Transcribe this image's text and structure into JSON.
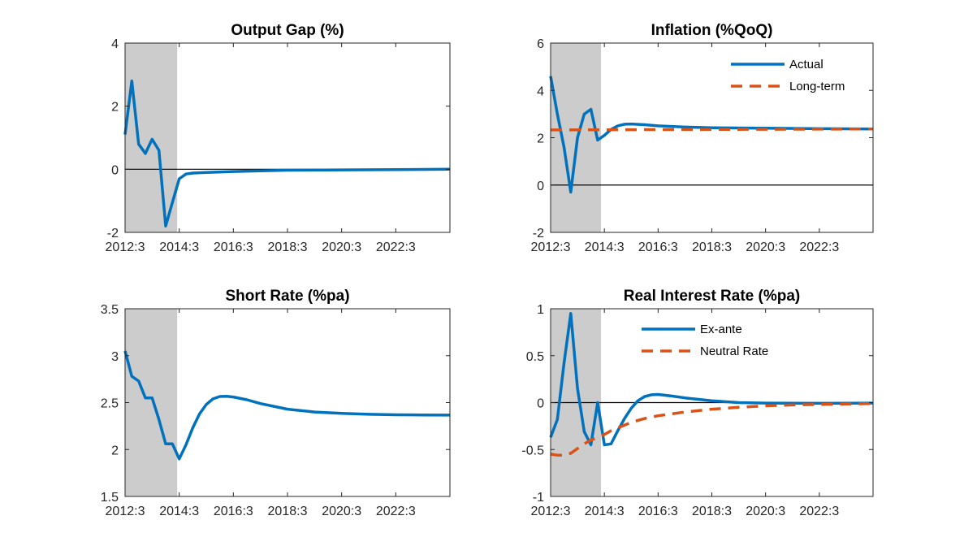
{
  "colors": {
    "actual": "#0072BD",
    "reference": "#D95319",
    "shade": "#CCCCCC",
    "axis": "#262626"
  },
  "chart_data": [
    {
      "type": "line",
      "title": "Output Gap (%)",
      "xlim": [
        0,
        48
      ],
      "ylim": [
        -2,
        4
      ],
      "yticks": [
        -2,
        0,
        2,
        4
      ],
      "ytick_labels": [
        "-2",
        "0",
        "2",
        "4"
      ],
      "xticks": [
        0,
        8,
        16,
        24,
        32,
        40
      ],
      "xtick_labels": [
        "2012:3",
        "2014:3",
        "2016:3",
        "2018:3",
        "2020:3",
        "2022:3"
      ],
      "shade_x": [
        0,
        7.7
      ],
      "zero_line": true,
      "legend": null,
      "series": [
        {
          "style": "solid",
          "x": [
            0,
            1,
            2,
            3,
            4,
            5,
            6,
            7,
            8,
            9,
            10,
            12,
            16,
            20,
            24,
            32,
            40,
            48
          ],
          "y": [
            1.1,
            2.8,
            0.8,
            0.5,
            0.95,
            0.6,
            -1.8,
            -1.05,
            -0.3,
            -0.15,
            -0.12,
            -0.1,
            -0.07,
            -0.05,
            -0.03,
            -0.02,
            -0.01,
            0
          ]
        }
      ]
    },
    {
      "type": "line",
      "title": "Inflation (%QoQ)",
      "xlim": [
        0,
        48
      ],
      "ylim": [
        -2,
        6
      ],
      "yticks": [
        -2,
        0,
        2,
        4,
        6
      ],
      "ytick_labels": [
        "-2",
        "0",
        "2",
        "4",
        "6"
      ],
      "xticks": [
        0,
        8,
        16,
        24,
        32,
        40
      ],
      "xtick_labels": [
        "2012:3",
        "2014:3",
        "2016:3",
        "2018:3",
        "2020:3",
        "2022:3"
      ],
      "shade_x": [
        0,
        7.5
      ],
      "zero_line": true,
      "legend": {
        "position": "top-right",
        "entries": [
          "Actual",
          "Long-term"
        ]
      },
      "series": [
        {
          "name": "Actual",
          "style": "solid",
          "x": [
            0,
            1,
            2,
            3,
            4,
            5,
            6,
            7,
            8,
            9,
            10,
            11,
            12,
            14,
            16,
            20,
            24,
            32,
            40,
            48
          ],
          "y": [
            4.6,
            3.0,
            1.6,
            -0.3,
            2.0,
            3.0,
            3.2,
            1.9,
            2.1,
            2.35,
            2.5,
            2.57,
            2.58,
            2.55,
            2.5,
            2.45,
            2.42,
            2.4,
            2.38,
            2.37
          ]
        },
        {
          "name": "Long-term",
          "style": "dashed",
          "x": [
            0,
            48
          ],
          "y": [
            2.33,
            2.37
          ]
        }
      ]
    },
    {
      "type": "line",
      "title": "Short Rate (%pa)",
      "xlim": [
        0,
        48
      ],
      "ylim": [
        1.5,
        3.5
      ],
      "yticks": [
        1.5,
        2,
        2.5,
        3,
        3.5
      ],
      "ytick_labels": [
        "1.5",
        "2",
        "2.5",
        "3",
        "3.5"
      ],
      "xticks": [
        0,
        8,
        16,
        24,
        32,
        40
      ],
      "xtick_labels": [
        "2012:3",
        "2014:3",
        "2016:3",
        "2018:3",
        "2020:3",
        "2022:3"
      ],
      "shade_x": [
        0,
        7.7
      ],
      "zero_line": false,
      "legend": null,
      "series": [
        {
          "style": "solid",
          "x": [
            0,
            1,
            2,
            3,
            4,
            5,
            6,
            7,
            8,
            9,
            10,
            11,
            12,
            13,
            14,
            15,
            16,
            18,
            20,
            24,
            28,
            32,
            36,
            40,
            44,
            48
          ],
          "y": [
            3.05,
            2.78,
            2.73,
            2.55,
            2.55,
            2.32,
            2.06,
            2.06,
            1.9,
            2.05,
            2.23,
            2.38,
            2.48,
            2.54,
            2.565,
            2.567,
            2.56,
            2.53,
            2.49,
            2.43,
            2.4,
            2.385,
            2.375,
            2.37,
            2.368,
            2.367
          ]
        }
      ]
    },
    {
      "type": "line",
      "title": "Real Interest Rate (%pa)",
      "xlim": [
        0,
        48
      ],
      "ylim": [
        -1,
        1
      ],
      "yticks": [
        -1,
        -0.5,
        0,
        0.5,
        1
      ],
      "ytick_labels": [
        "-1",
        "-0.5",
        "0",
        "0.5",
        "1"
      ],
      "xticks": [
        0,
        8,
        16,
        24,
        32,
        40
      ],
      "xtick_labels": [
        "2012:3",
        "2014:3",
        "2016:3",
        "2018:3",
        "2020:3",
        "2022:3"
      ],
      "shade_x": [
        0,
        7.5
      ],
      "zero_line": true,
      "legend": {
        "position": "top-center",
        "entries": [
          "Ex-ante",
          "Neutral Rate"
        ]
      },
      "series": [
        {
          "name": "Ex-ante",
          "style": "solid",
          "x": [
            0,
            1,
            2,
            3,
            4,
            5,
            6,
            7,
            8,
            9,
            10,
            11,
            12,
            13,
            14,
            15,
            16,
            18,
            20,
            24,
            28,
            32,
            40,
            48
          ],
          "y": [
            -0.37,
            -0.18,
            0.42,
            0.95,
            0.15,
            -0.31,
            -0.45,
            0.0,
            -0.45,
            -0.44,
            -0.3,
            -0.17,
            -0.06,
            0.02,
            0.065,
            0.083,
            0.087,
            0.07,
            0.05,
            0.02,
            0.0,
            -0.005,
            -0.008,
            -0.005
          ]
        },
        {
          "name": "Neutral Rate",
          "style": "dashed",
          "x": [
            0,
            1,
            2,
            3,
            4,
            5,
            6,
            7,
            8,
            9,
            10,
            11,
            12,
            13,
            14,
            16,
            18,
            20,
            24,
            28,
            32,
            36,
            40,
            44,
            48
          ],
          "y": [
            -0.55,
            -0.56,
            -0.56,
            -0.54,
            -0.49,
            -0.44,
            -0.4,
            -0.37,
            -0.34,
            -0.3,
            -0.27,
            -0.24,
            -0.21,
            -0.19,
            -0.17,
            -0.14,
            -0.12,
            -0.1,
            -0.07,
            -0.05,
            -0.035,
            -0.025,
            -0.02,
            -0.015,
            -0.01
          ]
        }
      ]
    }
  ]
}
